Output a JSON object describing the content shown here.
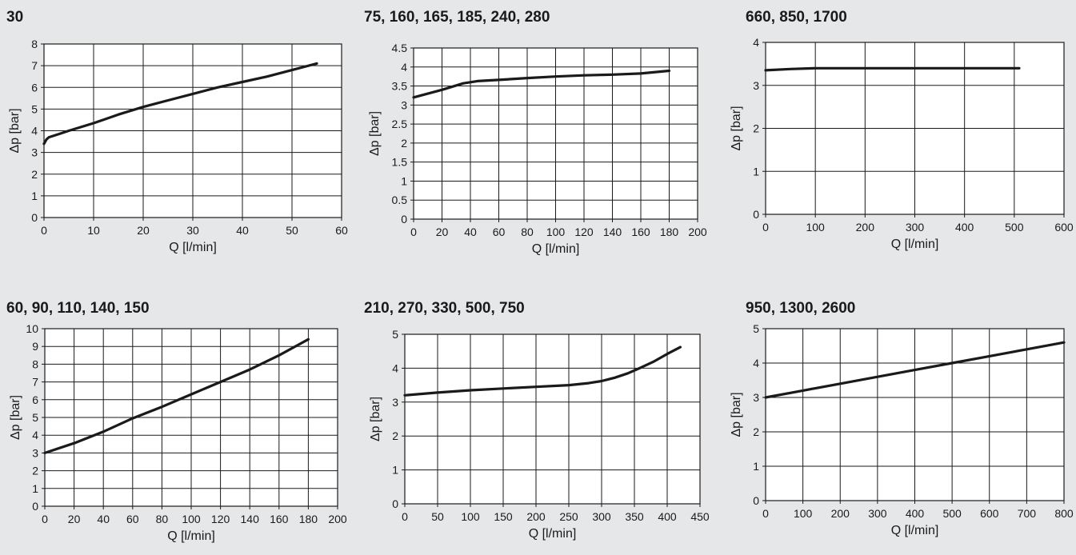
{
  "chart_data": [
    {
      "type": "line",
      "title": "30",
      "xlabel": "Q [l/min]",
      "ylabel": "Δp [bar]",
      "xlim": [
        0,
        60
      ],
      "ylim": [
        0,
        8
      ],
      "xticks": [
        "0",
        "10",
        "20",
        "30",
        "40",
        "50",
        "60"
      ],
      "yticks": [
        "0",
        "1",
        "2",
        "3",
        "4",
        "5",
        "6",
        "7",
        "8"
      ],
      "grid": true,
      "series": [
        {
          "x": [
            0,
            0.5,
            1,
            3,
            5,
            10,
            15,
            20,
            25,
            30,
            35,
            40,
            45,
            50,
            55
          ],
          "y": [
            3.4,
            3.6,
            3.7,
            3.85,
            4.0,
            4.35,
            4.75,
            5.1,
            5.4,
            5.7,
            6.0,
            6.25,
            6.5,
            6.8,
            7.1
          ]
        }
      ]
    },
    {
      "type": "line",
      "title": "75, 160, 165, 185, 240, 280",
      "xlabel": "Q [l/min]",
      "ylabel": "Δp [bar]",
      "xlim": [
        0,
        200
      ],
      "ylim": [
        0,
        4.5
      ],
      "xticks": [
        "0",
        "20",
        "40",
        "60",
        "80",
        "100",
        "120",
        "140",
        "160",
        "180",
        "200"
      ],
      "yticks": [
        "0",
        "0.5",
        "1",
        "1.5",
        "2",
        "2.5",
        "3",
        "3.5",
        "4",
        "4.5"
      ],
      "grid": true,
      "series": [
        {
          "x": [
            0,
            20,
            35,
            45,
            60,
            80,
            100,
            120,
            140,
            160,
            180
          ],
          "y": [
            3.2,
            3.4,
            3.57,
            3.63,
            3.66,
            3.71,
            3.75,
            3.78,
            3.8,
            3.83,
            3.9
          ]
        }
      ]
    },
    {
      "type": "line",
      "title": "660, 850, 1700",
      "xlabel": "Q [l/min]",
      "ylabel": "Δp [bar]",
      "xlim": [
        0,
        600
      ],
      "ylim": [
        0,
        4
      ],
      "xticks": [
        "0",
        "100",
        "200",
        "300",
        "400",
        "500",
        "600"
      ],
      "yticks": [
        "0",
        "1",
        "2",
        "3",
        "4"
      ],
      "grid": true,
      "series": [
        {
          "x": [
            0,
            50,
            100,
            200,
            300,
            400,
            510
          ],
          "y": [
            3.35,
            3.38,
            3.4,
            3.4,
            3.4,
            3.4,
            3.4
          ]
        }
      ]
    },
    {
      "type": "line",
      "title": "60, 90, 110, 140, 150",
      "xlabel": "Q [l/min]",
      "ylabel": "Δp [bar]",
      "xlim": [
        0,
        200
      ],
      "ylim": [
        0,
        10
      ],
      "xticks": [
        "0",
        "20",
        "40",
        "60",
        "80",
        "100",
        "120",
        "140",
        "160",
        "180",
        "200"
      ],
      "yticks": [
        "0",
        "1",
        "2",
        "3",
        "4",
        "5",
        "6",
        "7",
        "8",
        "9",
        "10"
      ],
      "grid": true,
      "series": [
        {
          "x": [
            0,
            20,
            40,
            60,
            80,
            100,
            120,
            140,
            160,
            180
          ],
          "y": [
            3.0,
            3.55,
            4.2,
            4.95,
            5.6,
            6.3,
            7.0,
            7.7,
            8.5,
            9.4
          ]
        }
      ]
    },
    {
      "type": "line",
      "title": "210, 270, 330, 500, 750",
      "xlabel": "Q [l/min]",
      "ylabel": "Δp [bar]",
      "xlim": [
        0,
        450
      ],
      "ylim": [
        0,
        5
      ],
      "xticks": [
        "0",
        "50",
        "100",
        "150",
        "200",
        "250",
        "300",
        "350",
        "400",
        "450"
      ],
      "yticks": [
        "0",
        "1",
        "2",
        "3",
        "4",
        "5"
      ],
      "grid": true,
      "series": [
        {
          "x": [
            0,
            50,
            100,
            150,
            200,
            250,
            280,
            300,
            320,
            340,
            360,
            380,
            400,
            420
          ],
          "y": [
            3.2,
            3.28,
            3.35,
            3.4,
            3.45,
            3.5,
            3.56,
            3.62,
            3.72,
            3.85,
            4.02,
            4.2,
            4.42,
            4.62
          ]
        }
      ]
    },
    {
      "type": "line",
      "title": "950, 1300, 2600",
      "xlabel": "Q [l/min]",
      "ylabel": "Δp [bar]",
      "xlim": [
        0,
        800
      ],
      "ylim": [
        0,
        5
      ],
      "xticks": [
        "0",
        "100",
        "200",
        "300",
        "400",
        "500",
        "600",
        "700",
        "800"
      ],
      "yticks": [
        "0",
        "1",
        "2",
        "3",
        "4",
        "5"
      ],
      "grid": true,
      "series": [
        {
          "x": [
            0,
            100,
            200,
            300,
            400,
            500,
            600,
            700,
            800
          ],
          "y": [
            3.0,
            3.2,
            3.4,
            3.6,
            3.8,
            4.0,
            4.2,
            4.4,
            4.6
          ]
        }
      ]
    }
  ]
}
